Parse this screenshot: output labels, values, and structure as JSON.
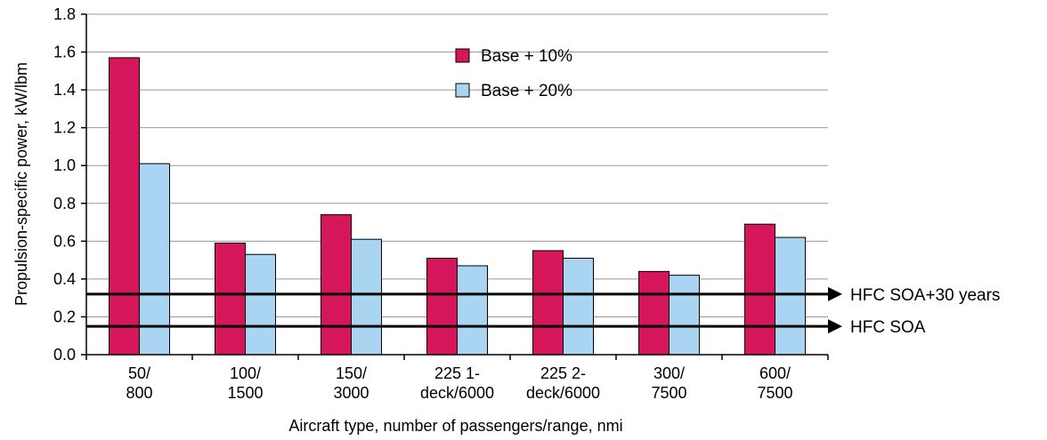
{
  "chart_data": {
    "type": "bar",
    "ylabel": "Propulsion-specific power, kW/lbm",
    "xlabel": "Aircraft type, number of passengers/range, nmi",
    "ylim": [
      0,
      1.8
    ],
    "yticks": [
      "0.0",
      "0.2",
      "0.4",
      "0.6",
      "0.8",
      "1.0",
      "1.2",
      "1.4",
      "1.6",
      "1.8"
    ],
    "categories": [
      [
        "50/",
        "800"
      ],
      [
        "100/",
        "1500"
      ],
      [
        "150/",
        "3000"
      ],
      [
        "225 1-",
        "deck/6000"
      ],
      [
        "225 2-",
        "deck/6000"
      ],
      [
        "300/",
        "7500"
      ],
      [
        "600/",
        "7500"
      ]
    ],
    "series": [
      {
        "name": "Base + 10%",
        "color": "#d5165a",
        "values": [
          1.57,
          0.59,
          0.74,
          0.51,
          0.55,
          0.44,
          0.69
        ]
      },
      {
        "name": "Base + 20%",
        "color": "#a9d4f2",
        "values": [
          1.01,
          0.53,
          0.61,
          0.47,
          0.51,
          0.42,
          0.62
        ]
      }
    ],
    "reference_lines": [
      {
        "label": "HFC SOA+30 years",
        "value": 0.32
      },
      {
        "label": "HFC SOA",
        "value": 0.15
      }
    ],
    "grid": true,
    "legend_position": "top-center"
  }
}
